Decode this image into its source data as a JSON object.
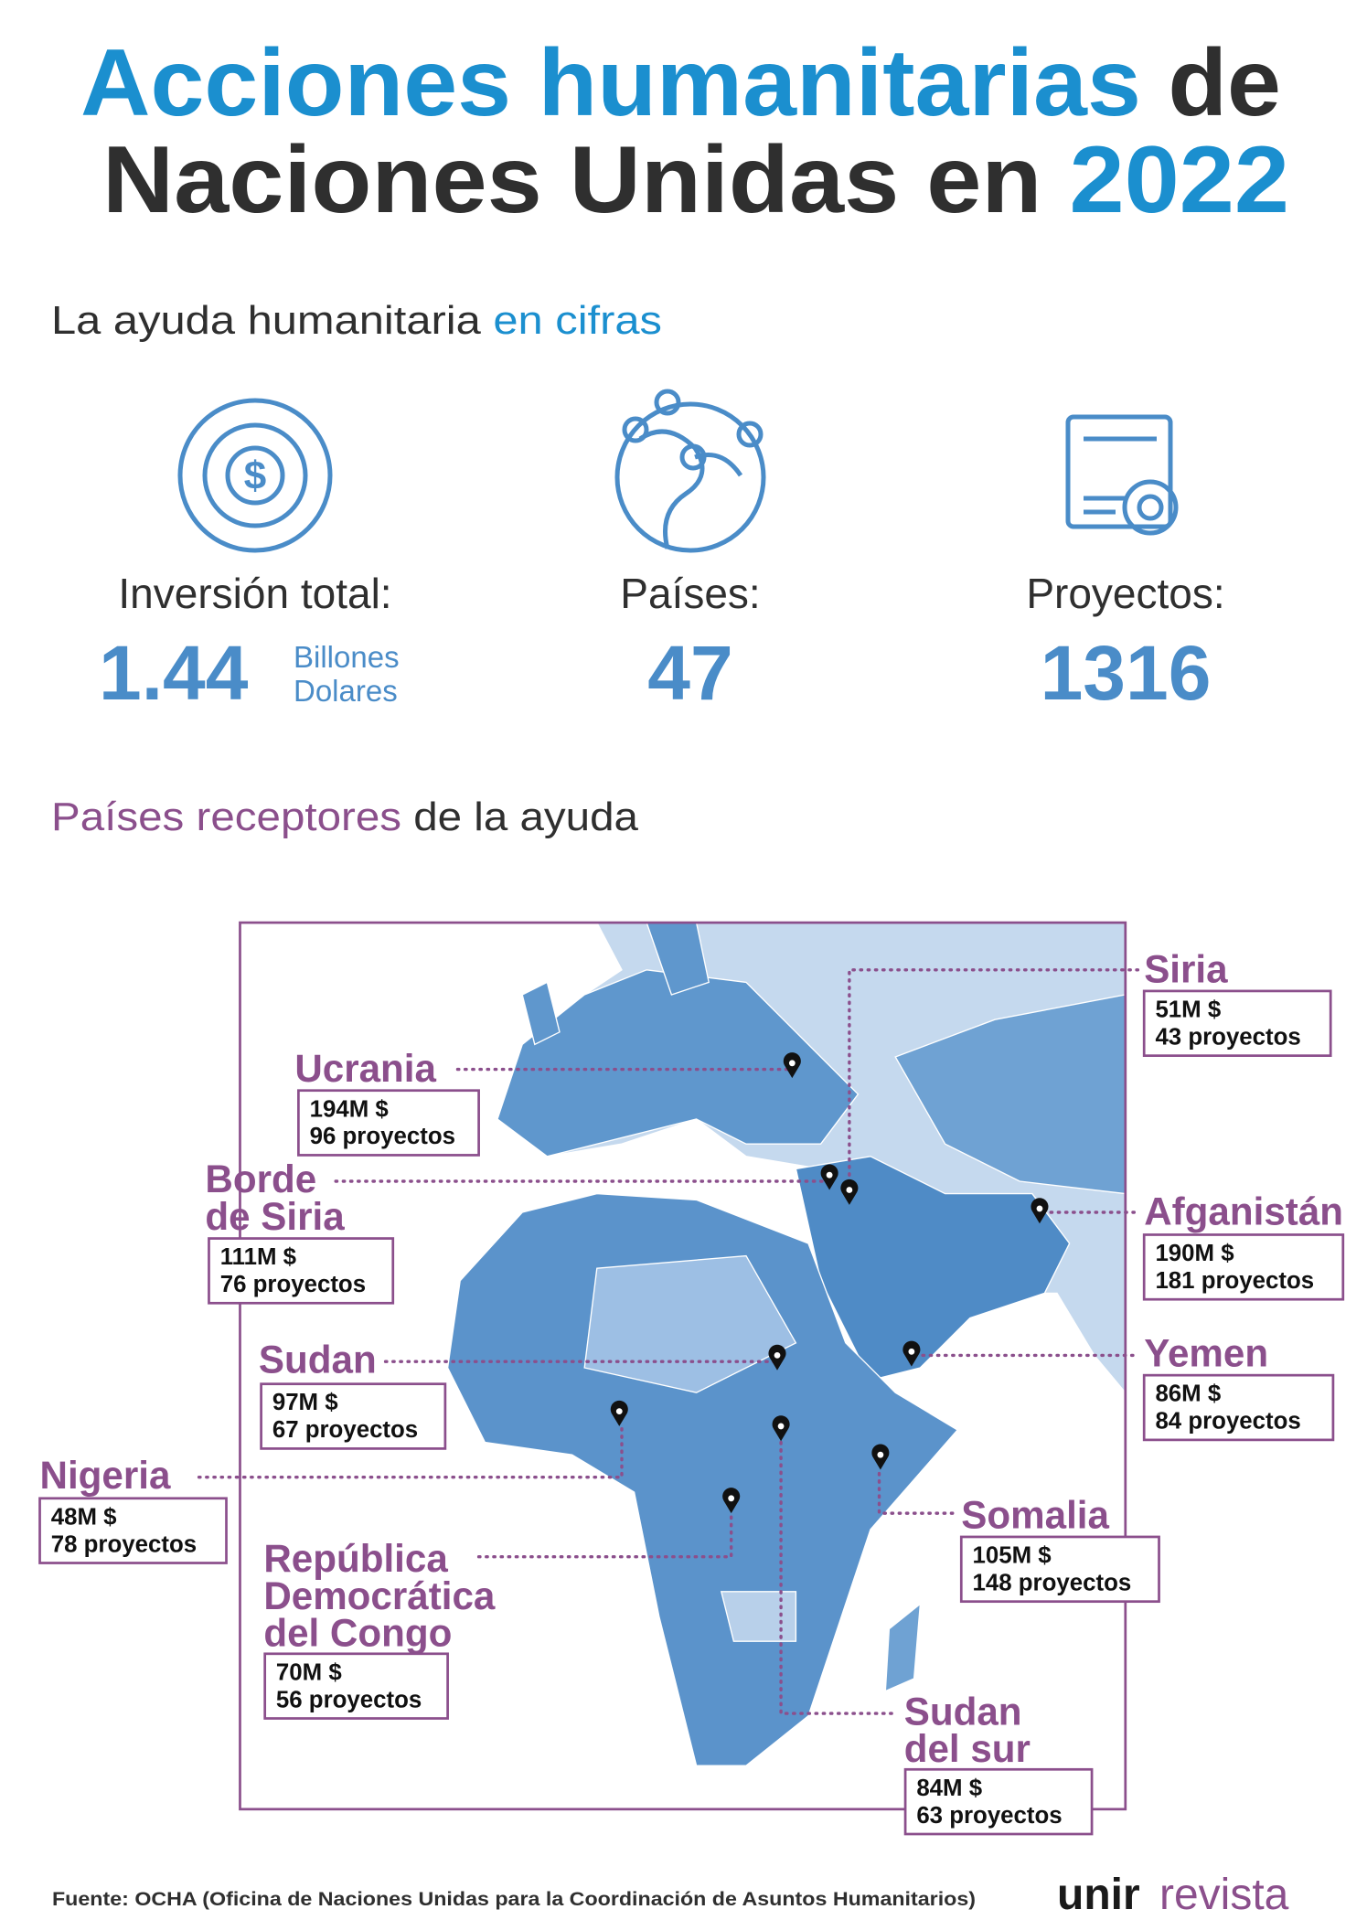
{
  "header": {
    "title_highlight": "Acciones humanitarias",
    "title_rest": "de",
    "title_line2": "Naciones Unidas en",
    "title_year": "2022"
  },
  "figures": {
    "heading": "La ayuda humanitaria",
    "heading_highlight": "en cifras",
    "items": [
      {
        "label": "Inversión total:",
        "value": "1.44",
        "unit": [
          "Billones",
          "Dolares"
        ]
      },
      {
        "label": "Países:",
        "value": "47"
      },
      {
        "label": "Proyectos:",
        "value": "1316"
      }
    ]
  },
  "map": {
    "heading_highlight": "Países receptores",
    "heading": "de la ayuda",
    "countries": [
      {
        "name": [
          "Siria"
        ],
        "amount": "51M $",
        "projects": "43 proyectos"
      },
      {
        "name": [
          "Ucrania"
        ],
        "amount": "194M $",
        "projects": "96 proyectos"
      },
      {
        "name": [
          "Borde",
          "de Siria"
        ],
        "amount": "111M $",
        "projects": "76 proyectos"
      },
      {
        "name": [
          "Afganistán"
        ],
        "amount": "190M $",
        "projects": "181 proyectos"
      },
      {
        "name": [
          "Sudan"
        ],
        "amount": "97M $",
        "projects": "67 proyectos"
      },
      {
        "name": [
          "Yemen"
        ],
        "amount": "86M $",
        "projects": "84 proyectos"
      },
      {
        "name": [
          "Nigeria"
        ],
        "amount": "48M $",
        "projects": "78 proyectos"
      },
      {
        "name": [
          "Somalia"
        ],
        "amount": "105M $",
        "projects": "148 proyectos"
      },
      {
        "name": [
          "República",
          "Democrática",
          "del Congo"
        ],
        "amount": "70M $",
        "projects": "56 proyectos"
      },
      {
        "name": [
          "Sudan",
          "del sur"
        ],
        "amount": "84M $",
        "projects": "63 proyectos"
      }
    ]
  },
  "footer": {
    "source": "Fuente: OCHA (Oficina de Naciones Unidas para la Coordinación de Asuntos Humanitarios)",
    "logo_bold": "unir",
    "logo_text": "revista"
  }
}
